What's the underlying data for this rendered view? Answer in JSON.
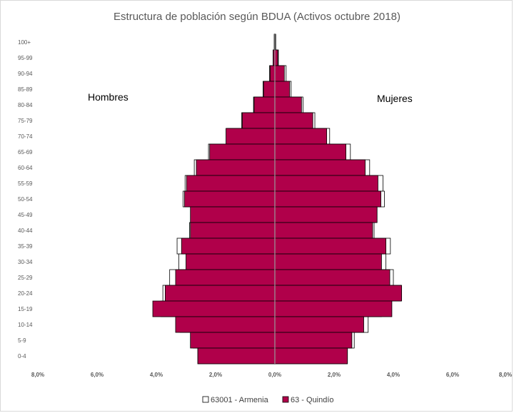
{
  "chart_data": {
    "type": "bar",
    "orientation": "horizontal",
    "title": "Estructura de población según BDUA (Activos octubre 2018)",
    "left_label": "Hombres",
    "right_label": "Mujeres",
    "categories": [
      "100+",
      "95-99",
      "90-94",
      "85-89",
      "80-84",
      "75-79",
      "70-74",
      "65-69",
      "60-64",
      "55-59",
      "50-54",
      "45-49",
      "40-44",
      "35-39",
      "30-34",
      "25-29",
      "20-24",
      "15-19",
      "10-14",
      "5-9",
      "0-4"
    ],
    "x_tick_labels": [
      "8,0%",
      "6,0%",
      "4,0%",
      "2,0%",
      "0,0%",
      "2,0%",
      "4,0%",
      "6,0%",
      "8,0%"
    ],
    "xlim": [
      -8,
      8
    ],
    "legend_position": "bottom",
    "series": [
      {
        "name": "63001 - Armenia",
        "color": "#ffffff",
        "stroke": "#000000",
        "men": [
          0.02,
          0.06,
          0.18,
          0.4,
          0.72,
          1.12,
          1.62,
          2.24,
          2.72,
          3.03,
          3.1,
          2.82,
          2.88,
          3.3,
          3.24,
          3.55,
          3.78,
          3.85,
          3.2,
          2.76,
          2.6
        ],
        "women": [
          0.03,
          0.12,
          0.38,
          0.55,
          0.95,
          1.35,
          1.85,
          2.55,
          3.2,
          3.65,
          3.7,
          3.45,
          3.35,
          3.9,
          3.75,
          4.0,
          4.25,
          3.6,
          3.15,
          2.68,
          2.45
        ]
      },
      {
        "name": "63 - Quindío",
        "color": "#b0004a",
        "stroke": "#000000",
        "men": [
          0.02,
          0.05,
          0.16,
          0.38,
          0.7,
          1.1,
          1.65,
          2.2,
          2.65,
          2.98,
          3.05,
          2.85,
          2.85,
          3.15,
          3.0,
          3.35,
          3.7,
          4.12,
          3.35,
          2.85,
          2.6
        ],
        "women": [
          0.02,
          0.1,
          0.32,
          0.5,
          0.9,
          1.28,
          1.75,
          2.4,
          3.05,
          3.48,
          3.58,
          3.45,
          3.3,
          3.75,
          3.6,
          3.88,
          4.28,
          3.95,
          3.0,
          2.6,
          2.45
        ]
      }
    ]
  }
}
